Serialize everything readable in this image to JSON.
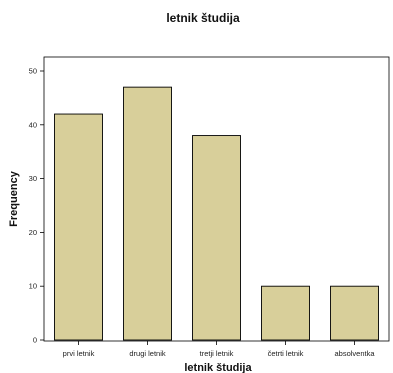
{
  "chart_data": {
    "type": "bar",
    "title": "letnik študija",
    "xlabel": "letnik študija",
    "ylabel": "Frequency",
    "categories": [
      "prvi letnik",
      "drugi letnik",
      "tretji letnik",
      "četrti letnik",
      "absolventka"
    ],
    "values": [
      42,
      47,
      38,
      10,
      10
    ],
    "ylim": [
      0,
      50
    ],
    "yticks": [
      0,
      10,
      20,
      30,
      40,
      50
    ],
    "grid": false,
    "legend": "none",
    "colors": {
      "bar_fill": "#d8cf9a",
      "bar_stroke": "#000000",
      "plot_bg": "#ffffff"
    }
  }
}
